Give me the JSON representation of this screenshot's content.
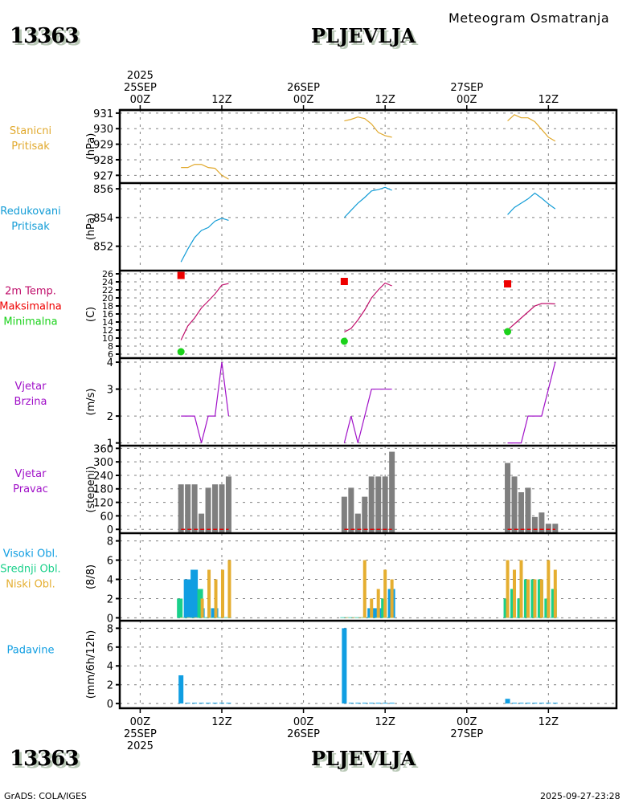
{
  "header": {
    "station_id": "13363",
    "station_name": "PLJEVLJA",
    "subtitle": "Meteogram Osmatranja"
  },
  "footer": {
    "left": "GrADS: COLA/IGES",
    "right": "2025-09-27-23:28"
  },
  "colors": {
    "station_pressure": "#e1a92d",
    "reduced_pressure": "#129cd6",
    "temperature": "#c0106c",
    "max_temp": "#ee0000",
    "min_temp": "#1bd21b",
    "wind_speed": "#a010c8",
    "wind_dir": "#7f7f7f",
    "high_cloud": "#109ee2",
    "mid_cloud": "#19d08a",
    "low_cloud": "#e5ae30",
    "precip": "#109ee2"
  },
  "chart_data": {
    "type": "line",
    "title": "Meteogram Osmatranja",
    "station": "13363 PLJEVLJA",
    "x_axis": {
      "unit": "hour since 2025-09-25 00Z",
      "range": [
        -3,
        70
      ],
      "top_ticks": [
        {
          "hour": 0,
          "lines": [
            "2025",
            "25SEP",
            "00Z"
          ]
        },
        {
          "hour": 12,
          "lines": [
            "12Z"
          ]
        },
        {
          "hour": 24,
          "lines": [
            "26SEP",
            "00Z"
          ]
        },
        {
          "hour": 36,
          "lines": [
            "12Z"
          ]
        },
        {
          "hour": 48,
          "lines": [
            "27SEP",
            "00Z"
          ]
        },
        {
          "hour": 60,
          "lines": [
            "12Z"
          ]
        }
      ],
      "bottom_ticks": [
        {
          "hour": 0,
          "lines": [
            "00Z",
            "25SEP",
            "2025"
          ]
        },
        {
          "hour": 12,
          "lines": [
            "12Z"
          ]
        },
        {
          "hour": 24,
          "lines": [
            "00Z",
            "26SEP"
          ]
        },
        {
          "hour": 36,
          "lines": [
            "12Z"
          ]
        },
        {
          "hour": 48,
          "lines": [
            "00Z",
            "27SEP"
          ]
        },
        {
          "hour": 60,
          "lines": [
            "12Z"
          ]
        }
      ]
    },
    "hours": [
      6,
      7,
      8,
      9,
      10,
      11,
      12,
      13,
      30,
      31,
      32,
      33,
      34,
      35,
      36,
      37,
      54,
      55,
      56,
      57,
      58,
      59,
      60,
      61
    ],
    "panels": [
      {
        "id": "station_pressure",
        "labels": [
          "Stanicni",
          "Pritisak"
        ],
        "label_colors": [
          "station_pressure",
          "station_pressure"
        ],
        "unit": "(hPa)",
        "ylim": [
          926.5,
          931.2
        ],
        "yticks": [
          927,
          928,
          929,
          930,
          931
        ],
        "type": "line",
        "series": [
          {
            "name": "Stanicni Pritisak",
            "color": "station_pressure",
            "segments": [
              [
                927.5,
                927.5,
                927.7,
                927.7,
                927.5,
                927.45,
                927.0,
                926.75
              ],
              [
                930.5,
                930.6,
                930.75,
                930.65,
                930.3,
                929.75,
                929.55,
                929.45
              ],
              [
                930.5,
                930.9,
                930.7,
                930.7,
                930.45,
                929.95,
                929.45,
                929.2
              ]
            ]
          }
        ]
      },
      {
        "id": "reduced_pressure",
        "labels": [
          "Redukovani",
          "Pritisak"
        ],
        "label_colors": [
          "reduced_pressure",
          "reduced_pressure"
        ],
        "unit": "(hPa)",
        "ylim": [
          850.3,
          856.4
        ],
        "yticks": [
          852,
          854,
          856
        ],
        "type": "line",
        "series": [
          {
            "name": "Redukovani Pritisak",
            "color": "reduced_pressure",
            "segments": [
              [
                850.9,
                851.8,
                852.6,
                853.1,
                853.3,
                853.75,
                853.95,
                853.8
              ],
              [
                854.0,
                854.5,
                855.0,
                855.4,
                855.85,
                855.95,
                856.1,
                855.9
              ],
              [
                854.2,
                854.7,
                855.0,
                855.3,
                855.7,
                855.35,
                854.95,
                854.6
              ]
            ]
          }
        ]
      },
      {
        "id": "temperature",
        "labels": [
          "2m Temp.",
          "Maksimalna",
          "Minimalna"
        ],
        "label_colors": [
          "temperature",
          "max_temp",
          "min_temp"
        ],
        "unit": "(C)",
        "ylim": [
          5.0,
          26.8
        ],
        "yticks": [
          6,
          8,
          10,
          12,
          14,
          16,
          18,
          20,
          22,
          24,
          26
        ],
        "type": "line",
        "series": [
          {
            "name": "2m Temp.",
            "color": "temperature",
            "segments": [
              [
                9.5,
                13.0,
                15.0,
                17.5,
                19.2,
                21.0,
                23.2,
                23.6
              ],
              [
                11.5,
                12.4,
                14.5,
                17.0,
                20.0,
                22.0,
                23.7,
                23.0
              ],
              [
                12.0,
                13.5,
                15.0,
                16.5,
                18.0,
                18.6,
                18.6,
                18.5
              ]
            ]
          }
        ],
        "markers": [
          {
            "name": "Maksimalna",
            "color": "max_temp",
            "shape": "square",
            "points": [
              [
                6,
                25.6
              ],
              [
                30,
                24.1
              ],
              [
                54,
                23.5
              ]
            ]
          },
          {
            "name": "Minimalna",
            "color": "min_temp",
            "shape": "circle",
            "points": [
              [
                6,
                6.6
              ],
              [
                30,
                9.2
              ],
              [
                54,
                11.6
              ]
            ]
          }
        ]
      },
      {
        "id": "wind_speed",
        "labels": [
          "Vjetar",
          "Brzina"
        ],
        "label_colors": [
          "wind_speed",
          "wind_speed"
        ],
        "unit": "(m/s)",
        "ylim": [
          0.9,
          4.15
        ],
        "yticks": [
          1,
          2,
          3,
          4
        ],
        "type": "line",
        "series": [
          {
            "name": "Vjetar Brzina",
            "color": "wind_speed",
            "segments": [
              [
                2,
                2,
                2,
                1,
                2,
                2,
                4,
                2
              ],
              [
                1,
                2,
                1,
                2,
                3,
                3,
                3,
                3
              ],
              [
                1,
                1,
                1,
                2,
                2,
                2,
                3,
                4
              ]
            ]
          }
        ]
      },
      {
        "id": "wind_dir",
        "labels": [
          "Vjetar",
          "Pravac"
        ],
        "label_colors": [
          "wind_speed",
          "wind_speed"
        ],
        "unit": "(stepeni)",
        "ylim": [
          -17,
          372
        ],
        "yticks": [
          0,
          60,
          120,
          180,
          240,
          300,
          360
        ],
        "type": "bar",
        "series": [
          {
            "name": "Vjetar Pravac",
            "color": "wind_dir",
            "segments": [
              [
                200,
                200,
                200,
                70,
                185,
                200,
                200,
                235
              ],
              [
                145,
                185,
                70,
                145,
                235,
                235,
                235,
                345
              ],
              [
                295,
                235,
                165,
                185,
                55,
                75,
                25,
                25
              ]
            ]
          }
        ]
      },
      {
        "id": "clouds",
        "labels": [
          "Visoki Obl.",
          "Srednji Obl.",
          "Niski Obl."
        ],
        "label_colors": [
          "high_cloud",
          "mid_cloud",
          "low_cloud"
        ],
        "unit": "(8/8)",
        "ylim": [
          -0.3,
          8.8
        ],
        "yticks": [
          0,
          2,
          4,
          6,
          8
        ],
        "type": "bar",
        "series": [
          {
            "name": "Visoki Obl.",
            "color": "high_cloud",
            "segments": [
              [
                0,
                4,
                5,
                1,
                0,
                1,
                0,
                0
              ],
              [
                0,
                0,
                0,
                0,
                1,
                1,
                0,
                3
              ],
              [
                0,
                0,
                0,
                0,
                0,
                0,
                0,
                0
              ]
            ]
          },
          {
            "name": "Srednji Obl.",
            "color": "mid_cloud",
            "segments": [
              [
                2,
                0,
                0,
                3,
                0,
                0,
                0,
                0
              ],
              [
                0,
                0,
                0,
                0,
                0,
                0,
                2,
                0
              ],
              [
                2,
                3,
                2,
                4,
                4,
                4,
                2,
                3
              ]
            ]
          },
          {
            "name": "Niski Obl.",
            "color": "low_cloud",
            "segments": [
              [
                0,
                0,
                0,
                2,
                5,
                4,
                5,
                6
              ],
              [
                0,
                0,
                0,
                6,
                2,
                3,
                5,
                4
              ],
              [
                6,
                5,
                6,
                4,
                4,
                4,
                6,
                5
              ]
            ]
          }
        ]
      },
      {
        "id": "precip",
        "labels": [
          "Padavine"
        ],
        "label_colors": [
          "precip"
        ],
        "unit": "(mm/6h/12h)",
        "ylim": [
          -0.5,
          8.8
        ],
        "yticks": [
          0,
          2,
          4,
          6,
          8
        ],
        "type": "bar",
        "series": [
          {
            "name": "Padavine",
            "color": "precip",
            "segments": [
              [
                3.0,
                0,
                0,
                0,
                0,
                0,
                0,
                0
              ],
              [
                8.0,
                0,
                0,
                0,
                0,
                0,
                0,
                0
              ],
              [
                0.5,
                0,
                0,
                0,
                0,
                0,
                0,
                0
              ]
            ]
          }
        ]
      }
    ]
  }
}
